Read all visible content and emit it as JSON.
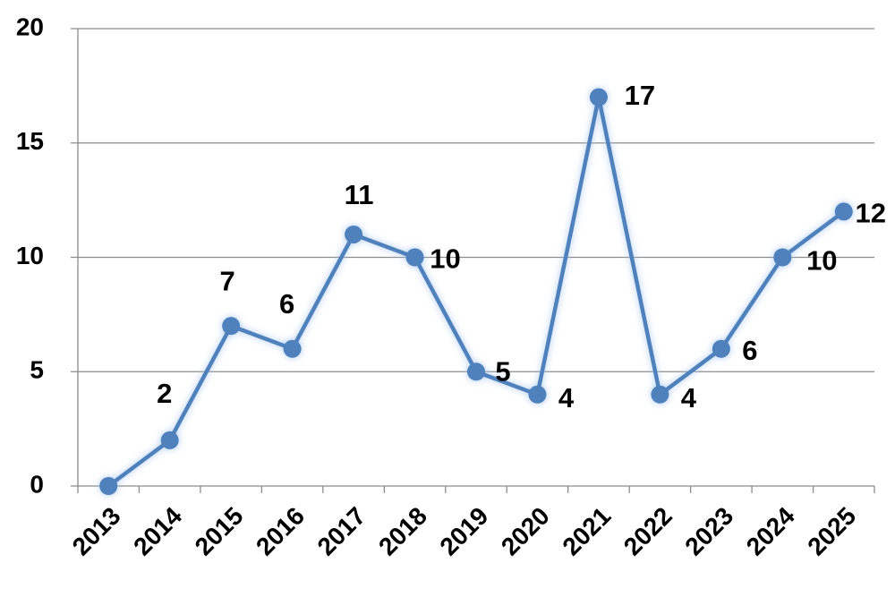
{
  "chart_data": {
    "type": "line",
    "categories": [
      "2013",
      "2014",
      "2015",
      "2016",
      "2017",
      "2018",
      "2019",
      "2020",
      "2021",
      "2022",
      "2023",
      "2024",
      "2025"
    ],
    "values": [
      0,
      2,
      7,
      6,
      11,
      10,
      5,
      4,
      17,
      4,
      6,
      10,
      12
    ],
    "color": "#4f81bd",
    "ylim": [
      0,
      20
    ],
    "yticks": [
      0,
      5,
      10,
      15,
      20
    ],
    "grid": true
  }
}
